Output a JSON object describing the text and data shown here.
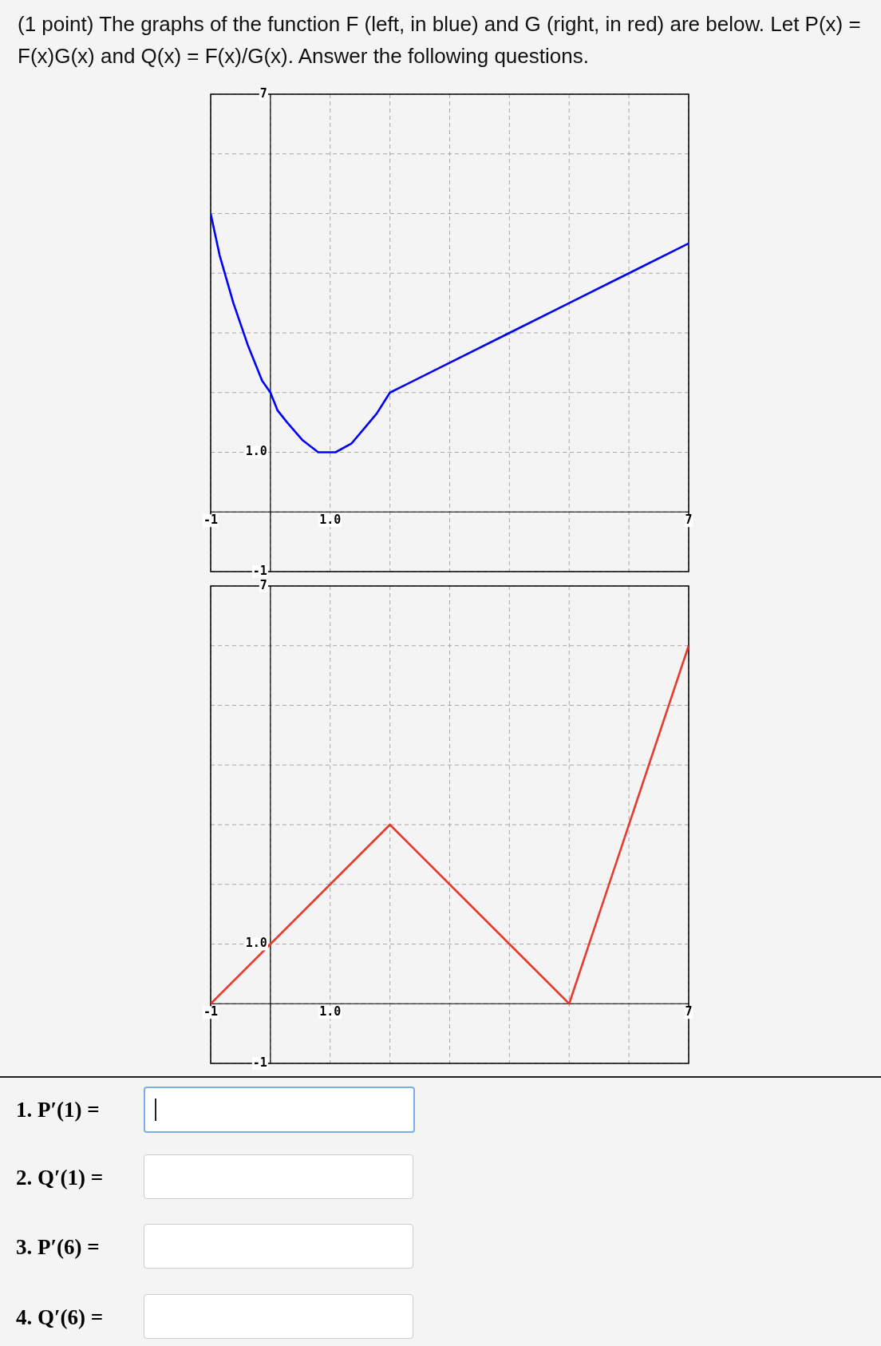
{
  "chart_data": [
    {
      "type": "line",
      "title": "(1 point) The graphs of the function F (left, in blue) and G (right, in red) are below. Let P(x) = F(x)G(x) and Q(x) = F(x)/G(x). Answer the following questions.",
      "x": [
        -1,
        -0.85,
        -0.62,
        -0.38,
        -0.14,
        0,
        0.12,
        0.28,
        0.54,
        0.8,
        1.09,
        1.36,
        1.57,
        1.78,
        2,
        3,
        4,
        5,
        6,
        7
      ],
      "series": [
        {
          "color": "#0000ff",
          "values": [
            5,
            4.3,
            3.5,
            2.8,
            2.2,
            2,
            1.7,
            1.5,
            1.2,
            1,
            1,
            1.15,
            1.4,
            1.65,
            2,
            2.5,
            3,
            3.5,
            4,
            4.5
          ]
        }
      ],
      "xlim": [
        -1,
        7
      ],
      "ylim": [
        -1,
        7
      ],
      "xticks": [
        {
          "value": -1,
          "label": "-1"
        },
        {
          "value": 0,
          "label": null
        },
        {
          "value": 1,
          "label": "1.0"
        },
        {
          "value": 2,
          "label": null
        },
        {
          "value": 3,
          "label": null
        },
        {
          "value": 4,
          "label": null
        },
        {
          "value": 5,
          "label": null
        },
        {
          "value": 6,
          "label": null
        },
        {
          "value": 7,
          "label": "7"
        }
      ],
      "yticks": [
        {
          "value": -1,
          "label": "-1"
        },
        {
          "value": 0,
          "label": null
        },
        {
          "value": 1,
          "label": "1.0"
        },
        {
          "value": 2,
          "label": null
        },
        {
          "value": 3,
          "label": null
        },
        {
          "value": 4,
          "label": null
        },
        {
          "value": 5,
          "label": null
        },
        {
          "value": 6,
          "label": null
        },
        {
          "value": 7,
          "label": "7"
        }
      ],
      "grid": true
    },
    {
      "type": "line",
      "x": [
        -1,
        2,
        5,
        7
      ],
      "series": [
        {
          "color": "#e8392c",
          "values": [
            0,
            3,
            0,
            6
          ]
        }
      ],
      "xlim": [
        -1,
        7
      ],
      "ylim": [
        -1,
        7
      ],
      "xticks": [
        {
          "value": -1,
          "label": "-1"
        },
        {
          "value": 0,
          "label": null
        },
        {
          "value": 1,
          "label": "1.0"
        },
        {
          "value": 2,
          "label": null
        },
        {
          "value": 3,
          "label": null
        },
        {
          "value": 4,
          "label": null
        },
        {
          "value": 5,
          "label": null
        },
        {
          "value": 6,
          "label": null
        },
        {
          "value": 7,
          "label": "7"
        }
      ],
      "yticks": [
        {
          "value": -1,
          "label": "-1"
        },
        {
          "value": 0,
          "label": null
        },
        {
          "value": 1,
          "label": "1.0"
        },
        {
          "value": 2,
          "label": null
        },
        {
          "value": 3,
          "label": null
        },
        {
          "value": 4,
          "label": null
        },
        {
          "value": 5,
          "label": null
        },
        {
          "value": 6,
          "label": null
        },
        {
          "value": 7,
          "label": "7"
        }
      ],
      "grid": true,
      "annotations": [
        "1. P′(1) =",
        "2. Q′(1) =",
        "3. P′(6) =",
        "4. Q′(6) ="
      ]
    }
  ]
}
